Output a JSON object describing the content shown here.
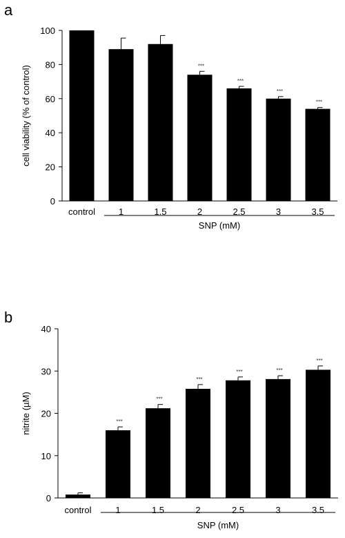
{
  "chart_data": [
    {
      "type": "bar",
      "panel_letter": "a",
      "ylabel": "cell viability (% of control)",
      "xlabel": "SNP (mM)",
      "ylim": [
        0,
        100
      ],
      "yticks": [
        0,
        20,
        40,
        60,
        80,
        100
      ],
      "categories": [
        "control",
        "1",
        "1.5",
        "2",
        "2.5",
        "3",
        "3.5"
      ],
      "values": [
        100,
        89,
        92,
        74,
        66,
        60,
        54
      ],
      "errors": [
        0,
        6.5,
        5,
        2,
        1.2,
        1.2,
        0.8
      ],
      "significance": [
        "",
        "",
        "",
        "***",
        "***",
        "***",
        "***"
      ],
      "group_bracket": {
        "label": "SNP (mM)",
        "from_category": "1",
        "to_category": "3.5"
      },
      "bar_color": "#000000",
      "grid": false
    },
    {
      "type": "bar",
      "panel_letter": "b",
      "ylabel": "nitrite (µM)",
      "xlabel": "SNP (mM)",
      "ylim": [
        0,
        40
      ],
      "yticks": [
        0,
        10,
        20,
        30,
        40
      ],
      "categories": [
        "control",
        "1",
        "1.5",
        "2",
        "2.5",
        "3",
        "3.5"
      ],
      "values": [
        0.8,
        16,
        21.2,
        25.8,
        27.8,
        28.1,
        30.3
      ],
      "errors": [
        0.4,
        0.8,
        0.9,
        1,
        0.8,
        0.8,
        0.9
      ],
      "significance": [
        "",
        "***",
        "***",
        "***",
        "***",
        "***",
        "***"
      ],
      "group_bracket": {
        "label": "SNP (mM)",
        "from_category": "1",
        "to_category": "3.5"
      },
      "bar_color": "#000000",
      "grid": false
    }
  ]
}
